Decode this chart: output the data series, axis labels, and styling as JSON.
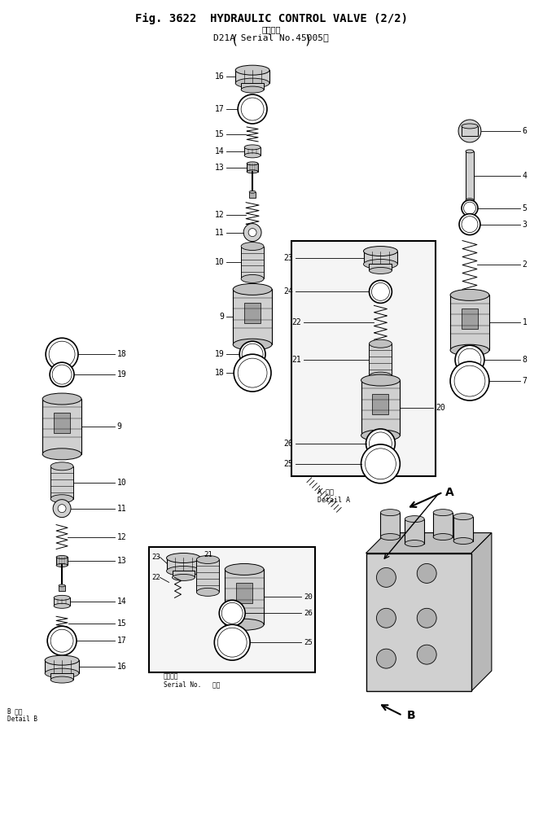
{
  "title_line1": "Fig. 3622  HYDRAULIC CONTROL VALVE (2/2)",
  "title_line2": "適用号機",
  "title_line3": "D21A Serial No.45005～",
  "bg_color": "#ffffff",
  "ink_color": "#000000",
  "fig_width": 6.67,
  "fig_height": 10.0
}
